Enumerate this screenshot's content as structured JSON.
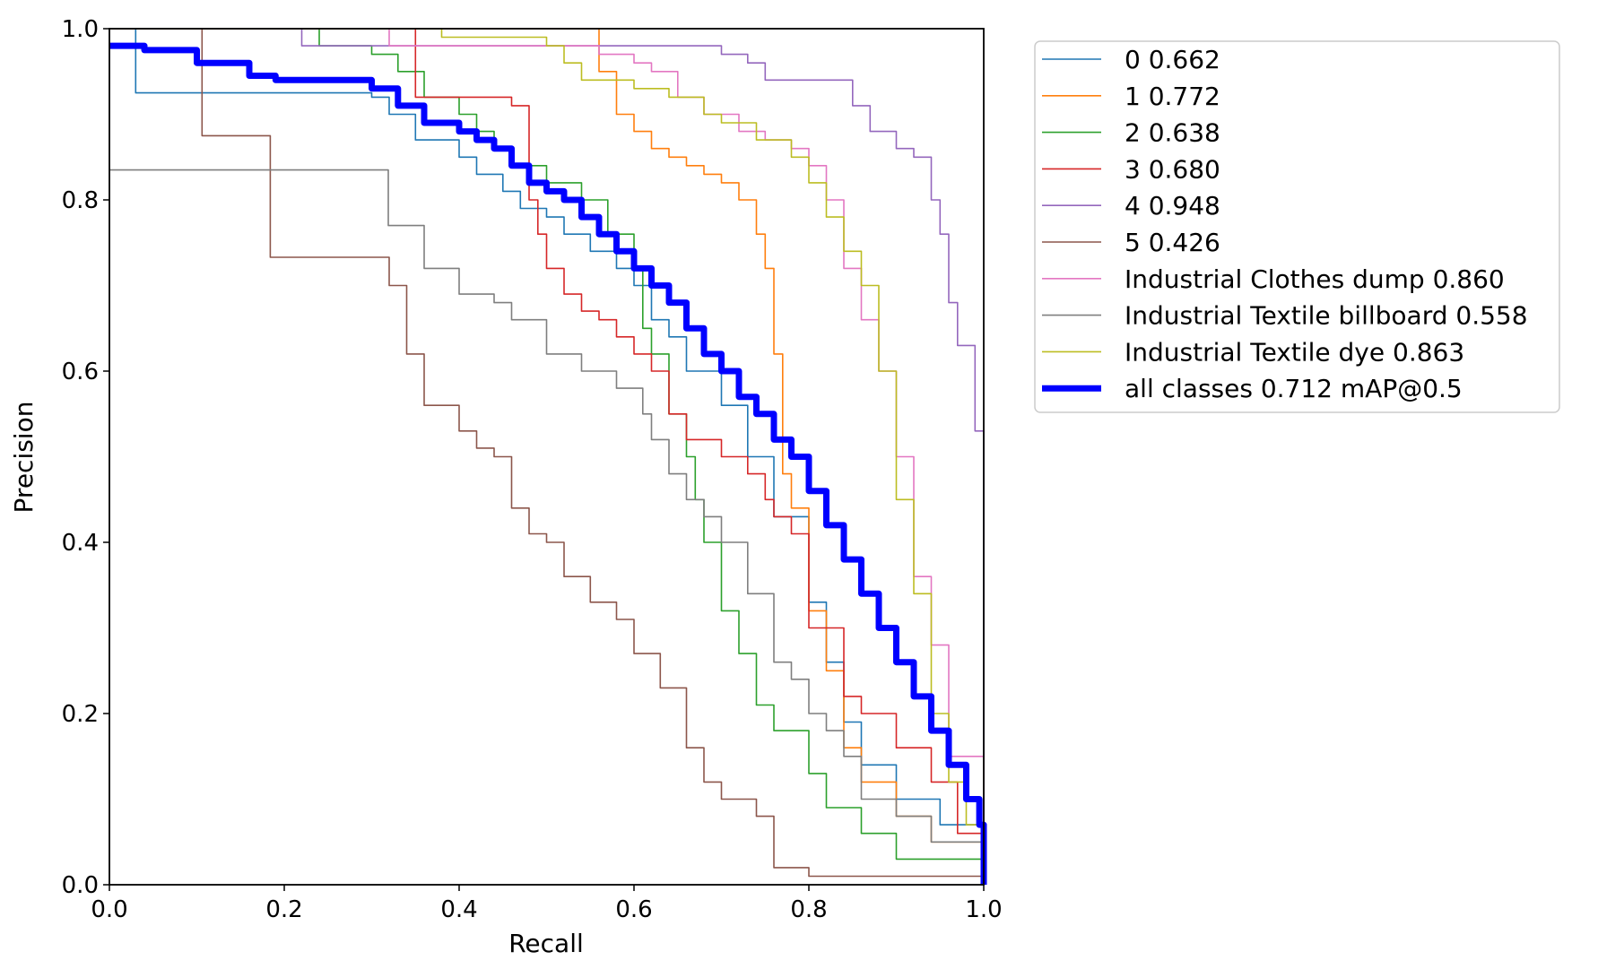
{
  "chart_data": {
    "type": "line",
    "title": "",
    "xlabel": "Recall",
    "ylabel": "Precision",
    "xlim": [
      0,
      1
    ],
    "ylim": [
      0,
      1
    ],
    "xticks": [
      "0.0",
      "0.2",
      "0.4",
      "0.6",
      "0.8",
      "1.0"
    ],
    "yticks": [
      "0.0",
      "0.2",
      "0.4",
      "0.6",
      "0.8",
      "1.0"
    ],
    "grid": false,
    "legend_position": "outside top-right",
    "series": [
      {
        "name": "0 0.662",
        "color": "#1f77b4",
        "width": 1.6,
        "x": [
          0.0,
          0.02,
          0.03,
          0.2,
          0.3,
          0.32,
          0.35,
          0.4,
          0.42,
          0.45,
          0.47,
          0.5,
          0.52,
          0.55,
          0.58,
          0.6,
          0.62,
          0.64,
          0.66,
          0.7,
          0.73,
          0.76,
          0.8,
          0.82,
          0.84,
          0.86,
          0.9,
          0.95,
          1.0
        ],
        "y": [
          1.0,
          1.0,
          0.925,
          0.925,
          0.92,
          0.9,
          0.87,
          0.85,
          0.83,
          0.81,
          0.79,
          0.78,
          0.76,
          0.74,
          0.72,
          0.7,
          0.66,
          0.64,
          0.6,
          0.56,
          0.5,
          0.43,
          0.33,
          0.26,
          0.19,
          0.14,
          0.1,
          0.07,
          0.0
        ]
      },
      {
        "name": "1 0.772",
        "color": "#ff7f0e",
        "width": 1.6,
        "x": [
          0.0,
          0.54,
          0.56,
          0.58,
          0.6,
          0.62,
          0.64,
          0.66,
          0.68,
          0.7,
          0.72,
          0.74,
          0.75,
          0.76,
          0.77,
          0.78,
          0.8,
          0.82,
          0.84,
          0.86,
          0.9,
          0.94,
          1.0
        ],
        "y": [
          1.0,
          1.0,
          0.95,
          0.9,
          0.88,
          0.86,
          0.85,
          0.84,
          0.83,
          0.82,
          0.8,
          0.76,
          0.72,
          0.62,
          0.48,
          0.44,
          0.32,
          0.25,
          0.16,
          0.12,
          0.08,
          0.05,
          0.0
        ]
      },
      {
        "name": "2 0.638",
        "color": "#2ca02c",
        "width": 1.6,
        "x": [
          0.0,
          0.22,
          0.24,
          0.3,
          0.33,
          0.36,
          0.4,
          0.42,
          0.44,
          0.46,
          0.5,
          0.54,
          0.57,
          0.6,
          0.61,
          0.62,
          0.64,
          0.66,
          0.67,
          0.68,
          0.7,
          0.72,
          0.74,
          0.76,
          0.8,
          0.82,
          0.86,
          0.9,
          1.0
        ],
        "y": [
          1.0,
          1.0,
          0.98,
          0.97,
          0.95,
          0.92,
          0.9,
          0.88,
          0.86,
          0.84,
          0.82,
          0.8,
          0.76,
          0.72,
          0.65,
          0.62,
          0.55,
          0.5,
          0.45,
          0.4,
          0.32,
          0.27,
          0.21,
          0.18,
          0.13,
          0.09,
          0.06,
          0.03,
          0.0
        ]
      },
      {
        "name": "3 0.680",
        "color": "#d62728",
        "width": 1.6,
        "x": [
          0.0,
          0.33,
          0.35,
          0.4,
          0.44,
          0.46,
          0.48,
          0.49,
          0.5,
          0.52,
          0.54,
          0.56,
          0.58,
          0.6,
          0.62,
          0.64,
          0.66,
          0.7,
          0.73,
          0.75,
          0.76,
          0.78,
          0.8,
          0.84,
          0.86,
          0.9,
          0.94,
          0.97,
          1.0
        ],
        "y": [
          1.0,
          1.0,
          0.92,
          0.92,
          0.92,
          0.91,
          0.8,
          0.76,
          0.72,
          0.69,
          0.67,
          0.66,
          0.64,
          0.62,
          0.6,
          0.55,
          0.52,
          0.5,
          0.48,
          0.45,
          0.43,
          0.41,
          0.3,
          0.22,
          0.2,
          0.16,
          0.12,
          0.06,
          0.0
        ]
      },
      {
        "name": "4 0.948",
        "color": "#9467bd",
        "width": 1.6,
        "x": [
          0.0,
          0.2,
          0.22,
          0.6,
          0.7,
          0.73,
          0.75,
          0.84,
          0.85,
          0.87,
          0.9,
          0.92,
          0.94,
          0.95,
          0.96,
          0.97,
          0.99,
          1.0
        ],
        "y": [
          1.0,
          1.0,
          0.98,
          0.98,
          0.97,
          0.96,
          0.94,
          0.94,
          0.91,
          0.88,
          0.86,
          0.85,
          0.8,
          0.76,
          0.68,
          0.63,
          0.53,
          0.0
        ]
      },
      {
        "name": "5 0.426",
        "color": "#8c564b",
        "width": 1.6,
        "x": [
          0.0,
          0.105,
          0.106,
          0.183,
          0.184,
          0.29,
          0.32,
          0.34,
          0.36,
          0.4,
          0.42,
          0.44,
          0.46,
          0.48,
          0.5,
          0.52,
          0.55,
          0.58,
          0.6,
          0.63,
          0.66,
          0.68,
          0.7,
          0.74,
          0.76,
          0.8,
          1.0
        ],
        "y": [
          1.0,
          1.0,
          0.875,
          0.875,
          0.733,
          0.733,
          0.7,
          0.62,
          0.56,
          0.53,
          0.51,
          0.5,
          0.44,
          0.41,
          0.4,
          0.36,
          0.33,
          0.31,
          0.27,
          0.23,
          0.16,
          0.12,
          0.1,
          0.08,
          0.02,
          0.01,
          0.0
        ]
      },
      {
        "name": "Industrial Clothes dump 0.860",
        "color": "#e377c2",
        "width": 1.6,
        "x": [
          0.0,
          0.3,
          0.32,
          0.5,
          0.56,
          0.6,
          0.62,
          0.65,
          0.68,
          0.72,
          0.75,
          0.78,
          0.8,
          0.82,
          0.84,
          0.86,
          0.88,
          0.9,
          0.92,
          0.94,
          0.96,
          1.0
        ],
        "y": [
          1.0,
          1.0,
          0.98,
          0.98,
          0.97,
          0.96,
          0.95,
          0.92,
          0.9,
          0.88,
          0.87,
          0.86,
          0.84,
          0.8,
          0.72,
          0.66,
          0.6,
          0.5,
          0.36,
          0.28,
          0.15,
          0.0
        ]
      },
      {
        "name": "Industrial Textile billboard 0.558",
        "color": "#7f7f7f",
        "width": 1.6,
        "x": [
          0.0,
          0.318,
          0.319,
          0.36,
          0.4,
          0.44,
          0.46,
          0.5,
          0.54,
          0.58,
          0.61,
          0.62,
          0.64,
          0.66,
          0.68,
          0.7,
          0.73,
          0.76,
          0.78,
          0.8,
          0.82,
          0.84,
          0.86,
          0.9,
          0.94,
          1.0
        ],
        "y": [
          0.835,
          0.835,
          0.77,
          0.72,
          0.69,
          0.68,
          0.66,
          0.62,
          0.6,
          0.58,
          0.55,
          0.52,
          0.48,
          0.45,
          0.43,
          0.4,
          0.34,
          0.26,
          0.24,
          0.2,
          0.18,
          0.15,
          0.1,
          0.08,
          0.05,
          0.0
        ]
      },
      {
        "name": "Industrial Textile dye 0.863",
        "color": "#bcbd22",
        "width": 1.6,
        "x": [
          0.0,
          0.36,
          0.38,
          0.5,
          0.52,
          0.54,
          0.6,
          0.64,
          0.68,
          0.7,
          0.74,
          0.78,
          0.8,
          0.82,
          0.84,
          0.86,
          0.88,
          0.9,
          0.92,
          0.94,
          0.96,
          0.98,
          1.0
        ],
        "y": [
          1.0,
          1.0,
          0.99,
          0.98,
          0.96,
          0.94,
          0.93,
          0.92,
          0.9,
          0.89,
          0.87,
          0.85,
          0.82,
          0.78,
          0.74,
          0.7,
          0.6,
          0.45,
          0.34,
          0.2,
          0.12,
          0.07,
          0.0
        ]
      },
      {
        "name": "all classes 0.712 mAP@0.5",
        "color": "#0000ff",
        "width": 7,
        "x": [
          0.0,
          0.02,
          0.04,
          0.1,
          0.16,
          0.19,
          0.22,
          0.26,
          0.3,
          0.33,
          0.36,
          0.4,
          0.42,
          0.44,
          0.46,
          0.48,
          0.5,
          0.52,
          0.54,
          0.56,
          0.58,
          0.6,
          0.62,
          0.64,
          0.66,
          0.68,
          0.7,
          0.72,
          0.74,
          0.76,
          0.78,
          0.8,
          0.82,
          0.84,
          0.86,
          0.88,
          0.9,
          0.92,
          0.94,
          0.96,
          0.98,
          0.995,
          1.0
        ],
        "y": [
          0.98,
          0.98,
          0.975,
          0.96,
          0.945,
          0.94,
          0.94,
          0.94,
          0.93,
          0.91,
          0.89,
          0.88,
          0.87,
          0.86,
          0.84,
          0.82,
          0.81,
          0.8,
          0.78,
          0.76,
          0.74,
          0.72,
          0.7,
          0.68,
          0.65,
          0.62,
          0.6,
          0.57,
          0.55,
          0.52,
          0.5,
          0.46,
          0.42,
          0.38,
          0.34,
          0.3,
          0.26,
          0.22,
          0.18,
          0.14,
          0.1,
          0.07,
          0.0
        ]
      }
    ]
  }
}
